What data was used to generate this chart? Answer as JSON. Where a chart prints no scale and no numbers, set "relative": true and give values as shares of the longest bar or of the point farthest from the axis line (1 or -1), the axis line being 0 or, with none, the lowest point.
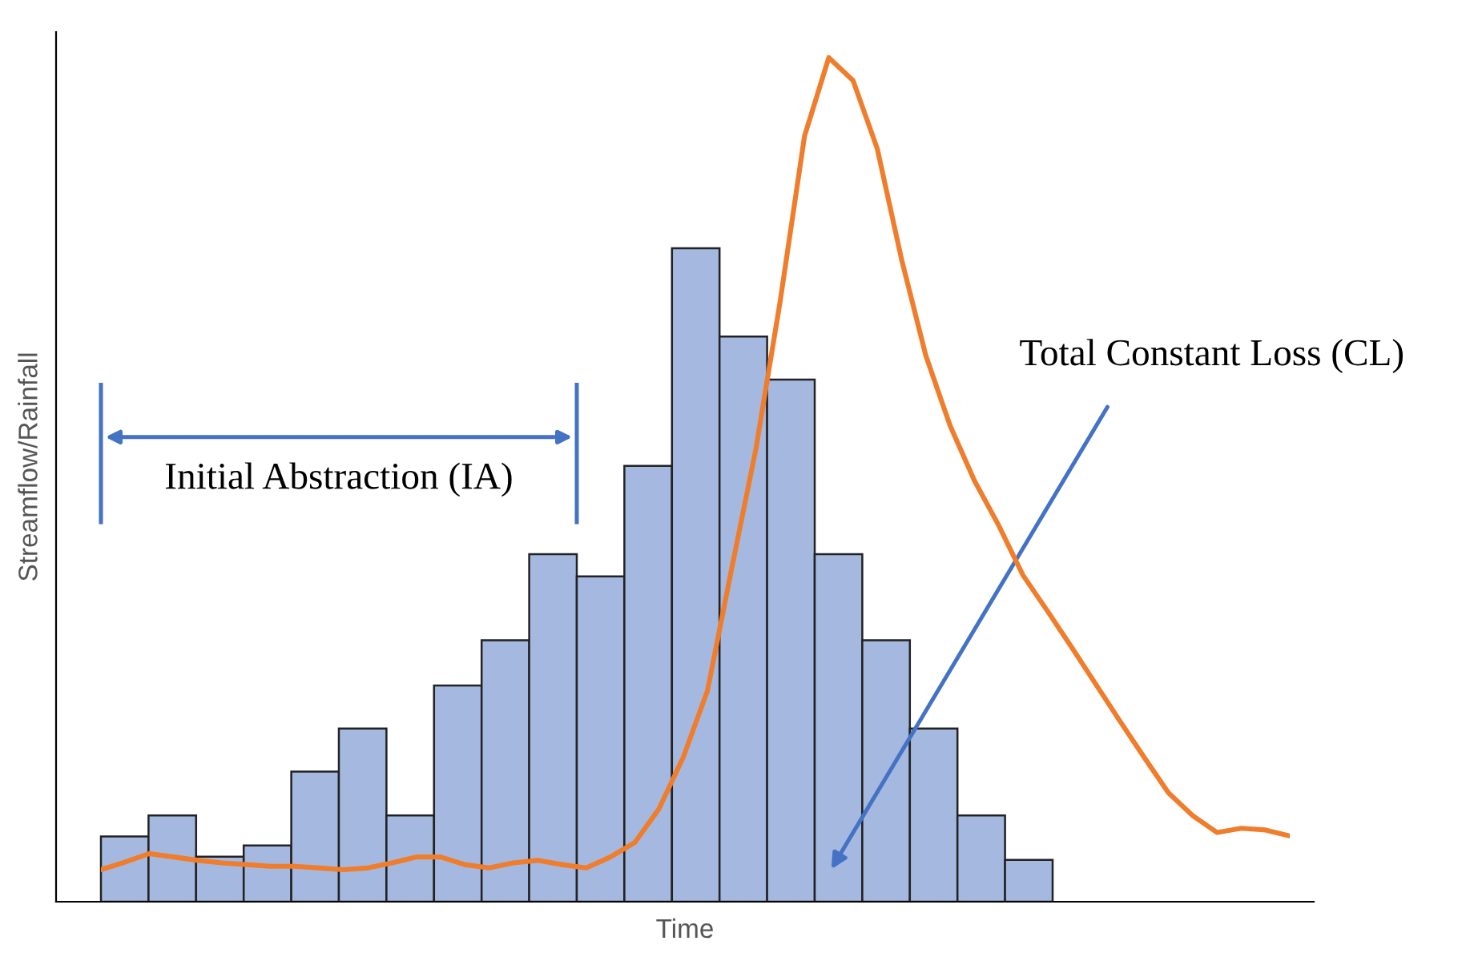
{
  "chart_data": [
    {
      "type": "bar",
      "xlabel": "Time",
      "ylabel": "Streamflow/Rainfall",
      "relative": true,
      "color": "#a5b9e0",
      "categories": [
        null,
        null,
        null,
        null,
        null,
        null,
        null,
        null,
        null,
        null,
        null,
        null,
        null,
        null,
        null,
        null,
        null,
        null,
        null,
        null
      ],
      "values": [
        0.1,
        0.132,
        0.069,
        0.086,
        0.199,
        0.265,
        0.132,
        0.331,
        0.4,
        0.532,
        0.498,
        0.667,
        1.0,
        0.865,
        0.799,
        0.532,
        0.4,
        0.265,
        0.132,
        0.064
      ],
      "annotations": [
        "Initial Abstraction (IA)",
        "Total Constant Loss (CL)"
      ]
    },
    {
      "type": "line",
      "relative": true,
      "color": "#ef7d2c",
      "categories": [
        null,
        null,
        null,
        null,
        null,
        null,
        null,
        null,
        null,
        null,
        null,
        null,
        null,
        null,
        null,
        null,
        null,
        null,
        null,
        null,
        null,
        null,
        null,
        null,
        null,
        null,
        null,
        null,
        null,
        null,
        null,
        null,
        null,
        null,
        null,
        null,
        null,
        null,
        null,
        null,
        null,
        null,
        null,
        null,
        null,
        null,
        null,
        null,
        null,
        null
      ],
      "values": [
        0.038,
        0.047,
        0.057,
        0.053,
        0.049,
        0.046,
        0.044,
        0.042,
        0.042,
        0.04,
        0.038,
        0.04,
        0.046,
        0.053,
        0.053,
        0.044,
        0.04,
        0.046,
        0.049,
        0.044,
        0.04,
        0.053,
        0.07,
        0.11,
        0.171,
        0.25,
        0.395,
        0.537,
        0.712,
        0.907,
        1.0,
        0.973,
        0.892,
        0.761,
        0.647,
        0.564,
        0.499,
        0.446,
        0.387,
        0.345,
        0.302,
        0.258,
        0.214,
        0.171,
        0.129,
        0.102,
        0.082,
        0.087,
        0.085,
        0.078
      ]
    }
  ]
}
